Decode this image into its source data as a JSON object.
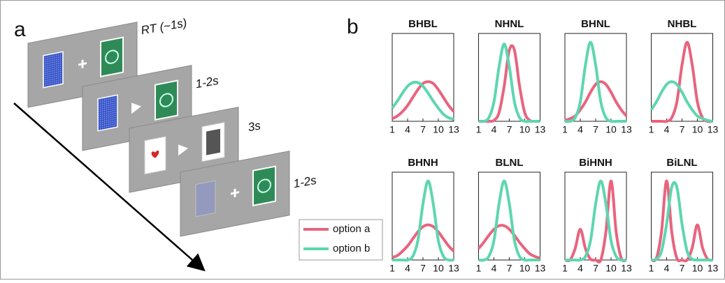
{
  "panels": {
    "a": {
      "label": "a",
      "steps": [
        {
          "time": "RT (~1s)"
        },
        {
          "time": "1-2s"
        },
        {
          "time": "3s"
        },
        {
          "time": "1-2s"
        }
      ]
    },
    "b": {
      "label": "b"
    }
  },
  "legend": [
    {
      "name": "option a",
      "color": "#e8647e"
    },
    {
      "name": "option b",
      "color": "#5ed6b0"
    }
  ],
  "chart_data": [
    {
      "type": "line",
      "title": "BHBL",
      "x": [
        1,
        2,
        3,
        4,
        5,
        6,
        7,
        8,
        9,
        10,
        11,
        12,
        13
      ],
      "xlim": [
        1,
        13
      ],
      "xticks": [
        1,
        4,
        7,
        10,
        13
      ],
      "ylim": [
        0,
        1
      ],
      "series": [
        {
          "values": [
            0.03,
            0.06,
            0.11,
            0.18,
            0.27,
            0.36,
            0.43,
            0.45,
            0.43,
            0.36,
            0.27,
            0.18,
            0.11
          ]
        },
        {
          "values": [
            0.15,
            0.23,
            0.32,
            0.4,
            0.44,
            0.44,
            0.4,
            0.32,
            0.23,
            0.15,
            0.08,
            0.04,
            0.02
          ]
        }
      ]
    },
    {
      "type": "line",
      "title": "NHNL",
      "x": [
        1,
        2,
        3,
        4,
        5,
        6,
        7,
        8,
        9,
        10,
        11,
        12,
        13
      ],
      "xlim": [
        1,
        13
      ],
      "xticks": [
        1,
        4,
        7,
        10,
        13
      ],
      "ylim": [
        0,
        1
      ],
      "series": [
        {
          "values": [
            0,
            0,
            0,
            0.01,
            0.1,
            0.4,
            0.81,
            0.81,
            0.4,
            0.1,
            0.01,
            0,
            0
          ]
        },
        {
          "values": [
            0,
            0,
            0.04,
            0.22,
            0.62,
            0.88,
            0.62,
            0.22,
            0.04,
            0,
            0,
            0,
            0
          ]
        }
      ]
    },
    {
      "type": "line",
      "title": "BHNL",
      "x": [
        1,
        2,
        3,
        4,
        5,
        6,
        7,
        8,
        9,
        10,
        11,
        12,
        13
      ],
      "xlim": [
        1,
        13
      ],
      "xticks": [
        1,
        4,
        7,
        10,
        13
      ],
      "ylim": [
        0,
        1
      ],
      "series": [
        {
          "values": [
            0.01,
            0.03,
            0.06,
            0.13,
            0.22,
            0.33,
            0.42,
            0.45,
            0.42,
            0.33,
            0.22,
            0.13,
            0.06
          ]
        },
        {
          "values": [
            0,
            0,
            0.04,
            0.22,
            0.64,
            0.9,
            0.64,
            0.22,
            0.04,
            0,
            0,
            0,
            0
          ]
        }
      ]
    },
    {
      "type": "line",
      "title": "NHBL",
      "x": [
        1,
        2,
        3,
        4,
        5,
        6,
        7,
        8,
        9,
        10,
        11,
        12,
        13
      ],
      "xlim": [
        1,
        13
      ],
      "xticks": [
        1,
        4,
        7,
        10,
        13
      ],
      "ylim": [
        0,
        1
      ],
      "series": [
        {
          "values": [
            0,
            0,
            0,
            0,
            0.04,
            0.22,
            0.64,
            0.9,
            0.64,
            0.22,
            0.04,
            0,
            0
          ]
        },
        {
          "values": [
            0.13,
            0.22,
            0.33,
            0.42,
            0.45,
            0.42,
            0.33,
            0.22,
            0.13,
            0.06,
            0.03,
            0.01,
            0
          ]
        }
      ]
    },
    {
      "type": "line",
      "title": "BHNH",
      "x": [
        1,
        2,
        3,
        4,
        5,
        6,
        7,
        8,
        9,
        10,
        11,
        12,
        13
      ],
      "xlim": [
        1,
        13
      ],
      "xticks": [
        1,
        4,
        7,
        10,
        13
      ],
      "ylim": [
        0,
        1
      ],
      "series": [
        {
          "values": [
            0.03,
            0.05,
            0.1,
            0.16,
            0.24,
            0.32,
            0.38,
            0.4,
            0.38,
            0.32,
            0.24,
            0.16,
            0.1
          ]
        },
        {
          "values": [
            0,
            0,
            0,
            0,
            0.04,
            0.22,
            0.64,
            0.9,
            0.64,
            0.22,
            0.04,
            0,
            0
          ]
        }
      ]
    },
    {
      "type": "line",
      "title": "BLNL",
      "x": [
        1,
        2,
        3,
        4,
        5,
        6,
        7,
        8,
        9,
        10,
        11,
        12,
        13
      ],
      "xlim": [
        1,
        13
      ],
      "xticks": [
        1,
        4,
        7,
        10,
        13
      ],
      "ylim": [
        0,
        1
      ],
      "series": [
        {
          "values": [
            0.13,
            0.2,
            0.28,
            0.35,
            0.39,
            0.39,
            0.35,
            0.28,
            0.2,
            0.13,
            0.07,
            0.04,
            0.02
          ]
        },
        {
          "values": [
            0,
            0,
            0.04,
            0.22,
            0.64,
            0.9,
            0.64,
            0.22,
            0.04,
            0,
            0,
            0,
            0
          ]
        }
      ]
    },
    {
      "type": "line",
      "title": "BiHNH",
      "x": [
        1,
        2,
        3,
        4,
        5,
        6,
        7,
        8,
        9,
        10,
        11,
        12,
        13
      ],
      "xlim": [
        1,
        13
      ],
      "xticks": [
        1,
        4,
        7,
        10,
        13
      ],
      "ylim": [
        0,
        1
      ],
      "series": [
        {
          "values": [
            0,
            0,
            0.13,
            0.35,
            0.13,
            0.01,
            0,
            0,
            0.32,
            0.9,
            0.32,
            0.02,
            0
          ]
        },
        {
          "values": [
            0,
            0,
            0,
            0,
            0.04,
            0.22,
            0.64,
            0.9,
            0.64,
            0.22,
            0.04,
            0,
            0
          ]
        }
      ]
    },
    {
      "type": "line",
      "title": "BiLNL",
      "x": [
        1,
        2,
        3,
        4,
        5,
        6,
        7,
        8,
        9,
        10,
        11,
        12,
        13
      ],
      "xlim": [
        1,
        13
      ],
      "xticks": [
        1,
        4,
        7,
        10,
        13
      ],
      "ylim": [
        0,
        1
      ],
      "series": [
        {
          "values": [
            0,
            0.02,
            0.32,
            0.9,
            0.32,
            0.02,
            0,
            0,
            0.14,
            0.4,
            0.14,
            0.01,
            0
          ]
        },
        {
          "values": [
            0,
            0.01,
            0.1,
            0.41,
            0.83,
            0.83,
            0.41,
            0.1,
            0.01,
            0,
            0,
            0,
            0
          ]
        }
      ]
    }
  ]
}
